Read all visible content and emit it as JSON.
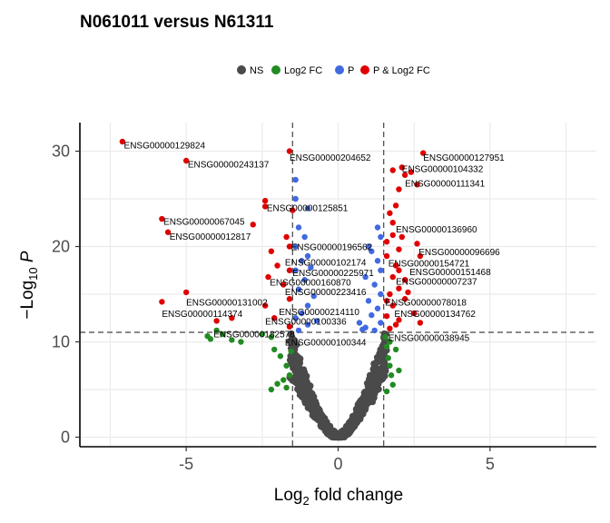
{
  "chart_data": {
    "type": "scatter",
    "title": "N061011 versus N61311",
    "xlabel": {
      "base": "Log",
      "sub": "2",
      "rest": " fold change"
    },
    "ylabel": {
      "minus": "−",
      "base": "Log",
      "sub": "10",
      "italic": "P"
    },
    "xlim": [
      -8.5,
      8.5
    ],
    "ylim": [
      -1,
      33
    ],
    "xticks": [
      -5,
      0,
      5
    ],
    "yticks": [
      0,
      10,
      20,
      30
    ],
    "grid": true,
    "legend_position": "top",
    "cutoffs": {
      "x": [
        -1.5,
        1.5
      ],
      "y": 11.0
    },
    "series": [
      {
        "name": "NS",
        "color": "#4a4a4a"
      },
      {
        "name": "Log2 FC",
        "color": "#228b22"
      },
      {
        "name": "P",
        "color": "#4169e1"
      },
      {
        "name": "P & Log2 FC",
        "color": "#e00000"
      }
    ],
    "points": {
      "green": [
        [
          -4.3,
          10.6
        ],
        [
          -4.2,
          10.3
        ],
        [
          -4.0,
          11.2
        ],
        [
          -3.8,
          10.8
        ],
        [
          -3.5,
          10.2
        ],
        [
          -3.2,
          10.0
        ],
        [
          -2.5,
          10.8
        ],
        [
          -2.2,
          10.5
        ],
        [
          -2.1,
          9.2
        ],
        [
          -1.9,
          8.5
        ],
        [
          -1.7,
          7.5
        ],
        [
          -1.6,
          6.5
        ],
        [
          -1.8,
          6.0
        ],
        [
          -2.0,
          5.6
        ],
        [
          -2.2,
          5.0
        ],
        [
          -1.7,
          5.2
        ],
        [
          -1.55,
          9.0
        ],
        [
          1.6,
          9.5
        ],
        [
          1.65,
          8.3
        ],
        [
          1.7,
          7.5
        ],
        [
          1.75,
          6.5
        ],
        [
          1.8,
          5.5
        ],
        [
          1.6,
          4.8
        ],
        [
          1.9,
          9.2
        ],
        [
          1.55,
          10.5
        ],
        [
          1.7,
          10.0
        ],
        [
          2.0,
          7.0
        ]
      ],
      "blue": [
        [
          -1.4,
          27.0
        ],
        [
          -1.4,
          25.0
        ],
        [
          -1.0,
          24.0
        ],
        [
          -1.3,
          22.0
        ],
        [
          -1.1,
          21.0
        ],
        [
          -1.4,
          20.0
        ],
        [
          -1.0,
          19.0
        ],
        [
          -1.2,
          18.5
        ],
        [
          -1.4,
          17.5
        ],
        [
          -0.9,
          17.8
        ],
        [
          -1.1,
          16.5
        ],
        [
          -1.3,
          15.5
        ],
        [
          -0.8,
          14.8
        ],
        [
          -1.0,
          13.8
        ],
        [
          -1.2,
          13.0
        ],
        [
          -1.4,
          12.5
        ],
        [
          -0.7,
          12.2
        ],
        [
          -1.0,
          11.8
        ],
        [
          -1.3,
          11.2
        ],
        [
          1.3,
          22.0
        ],
        [
          1.4,
          21.0
        ],
        [
          1.0,
          20.0
        ],
        [
          1.1,
          19.5
        ],
        [
          1.3,
          18.5
        ],
        [
          1.4,
          17.5
        ],
        [
          0.9,
          16.8
        ],
        [
          1.2,
          16.0
        ],
        [
          1.4,
          15.0
        ],
        [
          1.0,
          14.3
        ],
        [
          1.3,
          13.5
        ],
        [
          1.1,
          12.8
        ],
        [
          1.4,
          12.0
        ],
        [
          0.9,
          11.5
        ],
        [
          1.2,
          11.2
        ],
        [
          0.7,
          12.0
        ],
        [
          0.8,
          11.3
        ]
      ],
      "red": [
        [
          -7.1,
          31.0
        ],
        [
          -5.0,
          29.0
        ],
        [
          -2.4,
          24.8
        ],
        [
          -2.4,
          24.2
        ],
        [
          -1.6,
          30.0
        ],
        [
          -1.5,
          23.8
        ],
        [
          -5.8,
          22.9
        ],
        [
          -5.6,
          21.5
        ],
        [
          -2.8,
          22.3
        ],
        [
          -1.6,
          20.0
        ],
        [
          -1.7,
          21.0
        ],
        [
          -2.2,
          19.5
        ],
        [
          -2.0,
          18.0
        ],
        [
          -1.6,
          17.5
        ],
        [
          -2.3,
          16.8
        ],
        [
          -1.8,
          16.0
        ],
        [
          -5.0,
          15.2
        ],
        [
          -5.8,
          14.2
        ],
        [
          -4.0,
          12.2
        ],
        [
          -3.5,
          12.5
        ],
        [
          -2.4,
          13.8
        ],
        [
          -2.1,
          12.5
        ],
        [
          -1.6,
          14.5
        ],
        [
          -1.6,
          11.6
        ],
        [
          1.8,
          28.0
        ],
        [
          2.1,
          28.3
        ],
        [
          2.2,
          27.5
        ],
        [
          2.4,
          27.8
        ],
        [
          2.6,
          26.5
        ],
        [
          2.8,
          29.8
        ],
        [
          2.0,
          26.0
        ],
        [
          1.9,
          24.3
        ],
        [
          1.7,
          23.5
        ],
        [
          1.8,
          22.5
        ],
        [
          1.6,
          20.5
        ],
        [
          1.8,
          21.2
        ],
        [
          2.1,
          21.0
        ],
        [
          2.0,
          19.7
        ],
        [
          1.6,
          19.0
        ],
        [
          1.9,
          18.0
        ],
        [
          2.6,
          20.3
        ],
        [
          2.7,
          19.0
        ],
        [
          2.0,
          17.5
        ],
        [
          1.8,
          16.8
        ],
        [
          2.2,
          16.5
        ],
        [
          2.0,
          15.6
        ],
        [
          1.7,
          15.0
        ],
        [
          2.3,
          15.2
        ],
        [
          2.2,
          14.5
        ],
        [
          1.6,
          14.3
        ],
        [
          1.8,
          13.8
        ],
        [
          2.5,
          13.0
        ],
        [
          2.0,
          12.3
        ],
        [
          1.6,
          12.7
        ],
        [
          2.7,
          12.0
        ],
        [
          1.9,
          11.8
        ],
        [
          1.7,
          11.4
        ]
      ],
      "gray_model": {
        "spread": 1.6,
        "max_p": 12.0
      }
    },
    "labels": [
      {
        "text": "ENSG00000129824",
        "x": -7.05,
        "y": 30.3
      },
      {
        "text": "ENSG00000243137",
        "x": -4.95,
        "y": 28.3
      },
      {
        "text": "ENSG00000204652",
        "x": -1.6,
        "y": 29.0
      },
      {
        "text": "ENSG00000127951",
        "x": 2.8,
        "y": 29.0
      },
      {
        "text": "ENSG00000104332",
        "x": 2.1,
        "y": 27.8
      },
      {
        "text": "ENSG00000111341",
        "x": 2.2,
        "y": 26.3
      },
      {
        "text": "ENSG00000125851",
        "x": -2.35,
        "y": 23.7
      },
      {
        "text": "ENSG00000067045",
        "x": -5.75,
        "y": 22.3
      },
      {
        "text": "ENSG00000012817",
        "x": -5.55,
        "y": 20.7
      },
      {
        "text": "ENSG00000136960",
        "x": 1.9,
        "y": 21.5
      },
      {
        "text": "ENSG00000196562",
        "x": -1.55,
        "y": 19.6
      },
      {
        "text": "ENSG00000096696",
        "x": 2.65,
        "y": 19.1
      },
      {
        "text": "ENSG00000102174",
        "x": -1.75,
        "y": 18.0
      },
      {
        "text": "ENSG00000154721",
        "x": 1.65,
        "y": 17.9
      },
      {
        "text": "ENSG00000225971",
        "x": -1.5,
        "y": 16.9
      },
      {
        "text": "ENSG00000151468",
        "x": 2.35,
        "y": 17.0
      },
      {
        "text": "ENSG00000160870",
        "x": -2.25,
        "y": 15.9
      },
      {
        "text": "ENSG00000007237",
        "x": 1.9,
        "y": 16.0
      },
      {
        "text": "ENSG00000223416",
        "x": -1.75,
        "y": 14.9
      },
      {
        "text": "ENSG00000131002",
        "x": -5.0,
        "y": 13.8
      },
      {
        "text": "ENSG00000078018",
        "x": 1.55,
        "y": 13.8
      },
      {
        "text": "ENSG00000214110",
        "x": -1.95,
        "y": 12.8
      },
      {
        "text": "ENSG00000114374",
        "x": -5.8,
        "y": 12.6
      },
      {
        "text": "ENSG00000134762",
        "x": 1.85,
        "y": 12.6
      },
      {
        "text": "ENSG00000100336",
        "x": -2.4,
        "y": 11.8
      },
      {
        "text": "ENSG00000182578",
        "x": -4.1,
        "y": 10.5
      },
      {
        "text": "ENSG00000038945",
        "x": 1.65,
        "y": 10.1
      },
      {
        "text": "ENSG00000100344",
        "x": -1.75,
        "y": 9.6
      }
    ]
  }
}
